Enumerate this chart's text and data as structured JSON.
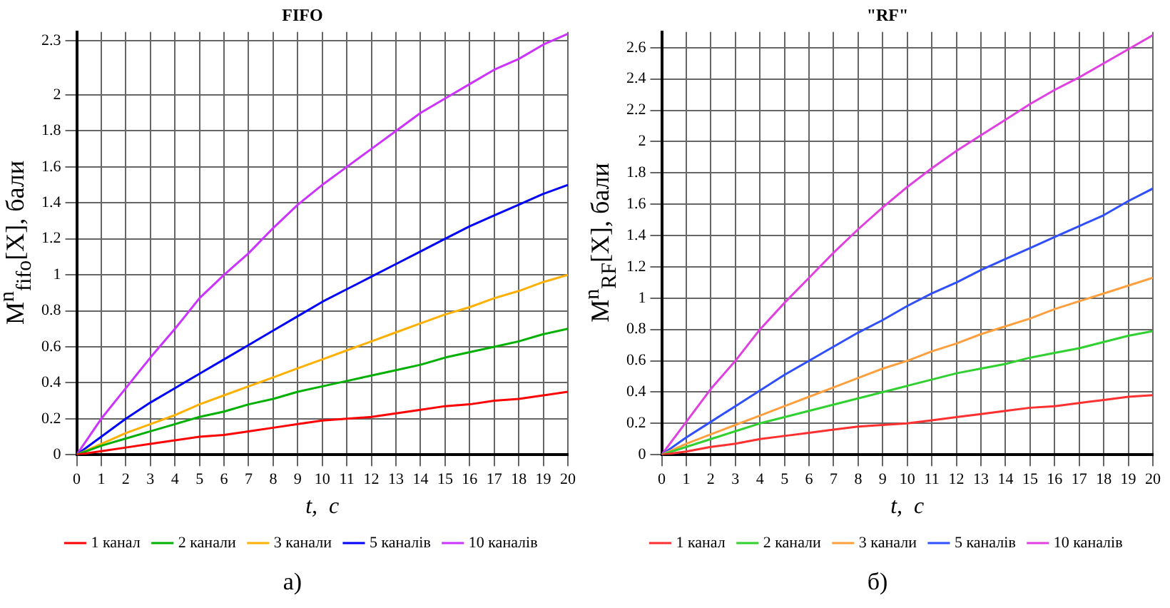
{
  "chart_data": [
    {
      "type": "line",
      "title": "FIFO",
      "xlabel": "t,  c",
      "ylabel": "M$^{n}$$_{fifo}$[X], бали",
      "annotations": [
        "а)"
      ],
      "x": [
        0,
        1,
        2,
        3,
        4,
        5,
        6,
        7,
        8,
        9,
        10,
        11,
        12,
        13,
        14,
        15,
        16,
        17,
        18,
        19,
        20
      ],
      "series": [
        {
          "name": "1 канал",
          "color": "#ff0000",
          "values": [
            0,
            0.02,
            0.04,
            0.06,
            0.08,
            0.1,
            0.11,
            0.13,
            0.15,
            0.17,
            0.19,
            0.2,
            0.21,
            0.23,
            0.25,
            0.27,
            0.28,
            0.3,
            0.31,
            0.33,
            0.35
          ]
        },
        {
          "name": "2 канали",
          "color": "#00b000",
          "values": [
            0,
            0.05,
            0.09,
            0.13,
            0.17,
            0.21,
            0.24,
            0.28,
            0.31,
            0.35,
            0.38,
            0.41,
            0.44,
            0.47,
            0.5,
            0.54,
            0.57,
            0.6,
            0.63,
            0.67,
            0.7
          ]
        },
        {
          "name": "3 канали",
          "color": "#ffb000",
          "values": [
            0,
            0.06,
            0.12,
            0.17,
            0.22,
            0.28,
            0.33,
            0.38,
            0.43,
            0.48,
            0.53,
            0.58,
            0.63,
            0.68,
            0.73,
            0.78,
            0.82,
            0.87,
            0.91,
            0.96,
            1.0
          ]
        },
        {
          "name": "5 каналів",
          "color": "#0000ff",
          "values": [
            0,
            0.1,
            0.2,
            0.29,
            0.37,
            0.45,
            0.53,
            0.61,
            0.69,
            0.77,
            0.85,
            0.92,
            0.99,
            1.06,
            1.13,
            1.2,
            1.27,
            1.33,
            1.39,
            1.45,
            1.5
          ]
        },
        {
          "name": "10 каналів",
          "color": "#cc33ff",
          "values": [
            0,
            0.2,
            0.37,
            0.54,
            0.7,
            0.87,
            1.0,
            1.12,
            1.26,
            1.39,
            1.5,
            1.6,
            1.7,
            1.8,
            1.9,
            1.98,
            2.06,
            2.14,
            2.2,
            2.28,
            2.34
          ]
        }
      ],
      "xlim": [
        0,
        20
      ],
      "xticks": [
        0,
        1,
        2,
        3,
        4,
        5,
        6,
        7,
        8,
        9,
        10,
        11,
        12,
        13,
        14,
        15,
        16,
        17,
        18,
        19,
        20
      ],
      "ylim": [
        0,
        2.35
      ],
      "yticks": [
        0,
        0.2,
        0.4,
        0.6,
        0.8,
        1,
        1.2,
        1.4,
        1.6,
        1.8,
        2,
        2.3
      ],
      "grid": true,
      "legend": "bottom",
      "marker": "none",
      "line_style": "solid"
    },
    {
      "type": "line",
      "title": "\"RF\"",
      "xlabel": "t,  c",
      "ylabel": "M$^{n}$$_{RF}$[X], бали",
      "annotations": [
        "б)"
      ],
      "x": [
        0,
        1,
        2,
        3,
        4,
        5,
        6,
        7,
        8,
        9,
        10,
        11,
        12,
        13,
        14,
        15,
        16,
        17,
        18,
        19,
        20
      ],
      "series": [
        {
          "name": "1 канал",
          "color": "#ff3030",
          "values": [
            0,
            0.02,
            0.05,
            0.07,
            0.1,
            0.12,
            0.14,
            0.16,
            0.18,
            0.19,
            0.2,
            0.22,
            0.24,
            0.26,
            0.28,
            0.3,
            0.31,
            0.33,
            0.35,
            0.37,
            0.38
          ]
        },
        {
          "name": "2 канали",
          "color": "#30d030",
          "values": [
            0,
            0.05,
            0.1,
            0.15,
            0.2,
            0.24,
            0.28,
            0.32,
            0.36,
            0.4,
            0.44,
            0.48,
            0.52,
            0.55,
            0.58,
            0.62,
            0.65,
            0.68,
            0.72,
            0.76,
            0.79
          ]
        },
        {
          "name": "3 канали",
          "color": "#ffa040",
          "values": [
            0,
            0.07,
            0.13,
            0.19,
            0.25,
            0.31,
            0.37,
            0.43,
            0.49,
            0.55,
            0.6,
            0.66,
            0.71,
            0.77,
            0.82,
            0.87,
            0.93,
            0.98,
            1.03,
            1.08,
            1.13
          ]
        },
        {
          "name": "5 каналів",
          "color": "#3050ff",
          "values": [
            0,
            0.11,
            0.21,
            0.31,
            0.41,
            0.51,
            0.6,
            0.69,
            0.78,
            0.86,
            0.95,
            1.03,
            1.1,
            1.18,
            1.25,
            1.32,
            1.39,
            1.46,
            1.53,
            1.62,
            1.7
          ]
        },
        {
          "name": "10 каналів",
          "color": "#e040e0",
          "values": [
            0,
            0.21,
            0.42,
            0.6,
            0.8,
            0.97,
            1.13,
            1.29,
            1.44,
            1.58,
            1.71,
            1.83,
            1.94,
            2.04,
            2.14,
            2.24,
            2.33,
            2.41,
            2.5,
            2.59,
            2.68
          ]
        }
      ],
      "xlim": [
        0,
        20
      ],
      "xticks": [
        0,
        1,
        2,
        3,
        4,
        5,
        6,
        7,
        8,
        9,
        10,
        11,
        12,
        13,
        14,
        15,
        16,
        17,
        18,
        19,
        20
      ],
      "ylim": [
        0,
        2.7
      ],
      "yticks": [
        0,
        0.2,
        0.4,
        0.6,
        0.8,
        1,
        1.2,
        1.4,
        1.6,
        1.8,
        2,
        2.2,
        2.4,
        2.6
      ],
      "grid": true,
      "legend": "bottom",
      "marker": "none",
      "line_style": "solid"
    }
  ]
}
